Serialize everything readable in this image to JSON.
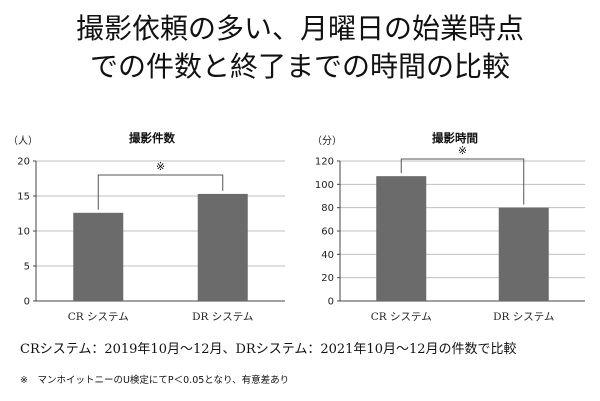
{
  "title_line1": "撮影依頼の多い、月曜日の始業時点",
  "title_line2": "での件数と終了までの時間の比較",
  "bar_color": "#6b6b6b",
  "grid_color": "#bfbfbf",
  "chart_data": [
    {
      "type": "bar",
      "title": "撮影件数",
      "ylabel": "（人）",
      "categories": [
        "CR システム",
        "DR システム"
      ],
      "values": [
        12.6,
        15.3
      ],
      "ylim": [
        0,
        20
      ],
      "yticks": [
        0,
        5,
        10,
        15,
        20
      ],
      "grid": true,
      "annotation": "※"
    },
    {
      "type": "bar",
      "title": "撮影時間",
      "ylabel": "（分）",
      "categories": [
        "CR システム",
        "DR システム"
      ],
      "values": [
        107,
        80
      ],
      "ylim": [
        0,
        120
      ],
      "yticks": [
        0,
        20,
        40,
        60,
        80,
        100,
        120
      ],
      "grid": true,
      "annotation": "※"
    }
  ],
  "caption": "CRシステム：2019年10月～12月、DRシステム：2021年10月～12月の件数で比較",
  "footnote": "※　マンホイットニーのU検定にてP＜0.05となり、有意差あり"
}
